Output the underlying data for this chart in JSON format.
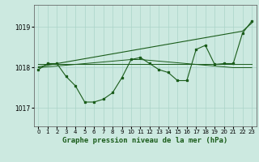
{
  "title": "Graphe pression niveau de la mer (hPa)",
  "background_color": "#cce9e0",
  "grid_color": "#aad4c8",
  "line_color": "#1a5c1a",
  "title_bg": "#2d6e2d",
  "title_fg": "#ffffff",
  "x_ticks": [
    0,
    1,
    2,
    3,
    4,
    5,
    6,
    7,
    8,
    9,
    10,
    11,
    12,
    13,
    14,
    15,
    16,
    17,
    18,
    19,
    20,
    21,
    22,
    23
  ],
  "y_ticks": [
    1017,
    1018,
    1019
  ],
  "ylim": [
    1016.55,
    1019.55
  ],
  "xlim": [
    -0.5,
    23.5
  ],
  "zigzag": [
    1017.95,
    1018.1,
    1018.1,
    1017.78,
    1017.55,
    1017.15,
    1017.15,
    1017.22,
    1017.38,
    1017.75,
    1018.2,
    1018.25,
    1018.1,
    1017.95,
    1017.88,
    1017.68,
    1017.68,
    1018.45,
    1018.55,
    1018.08,
    1018.1,
    1018.1,
    1018.85,
    1019.15
  ],
  "trend_up": [
    1018.02,
    1018.06,
    1018.1,
    1018.14,
    1018.18,
    1018.22,
    1018.26,
    1018.3,
    1018.34,
    1018.38,
    1018.42,
    1018.46,
    1018.5,
    1018.54,
    1018.58,
    1018.62,
    1018.66,
    1018.7,
    1018.74,
    1018.78,
    1018.82,
    1018.86,
    1018.9,
    1019.1
  ],
  "flat1": [
    1018.08,
    1018.08,
    1018.08,
    1018.08,
    1018.08,
    1018.08,
    1018.08,
    1018.08,
    1018.08,
    1018.08,
    1018.08,
    1018.08,
    1018.08,
    1018.08,
    1018.08,
    1018.08,
    1018.08,
    1018.08,
    1018.08,
    1018.08,
    1018.08,
    1018.08,
    1018.08,
    1018.08
  ],
  "flat2": [
    1018.0,
    1018.02,
    1018.04,
    1018.06,
    1018.08,
    1018.1,
    1018.12,
    1018.14,
    1018.16,
    1018.18,
    1018.2,
    1018.2,
    1018.18,
    1018.16,
    1018.14,
    1018.12,
    1018.1,
    1018.08,
    1018.06,
    1018.04,
    1018.02,
    1018.0,
    1018.0,
    1018.0
  ]
}
